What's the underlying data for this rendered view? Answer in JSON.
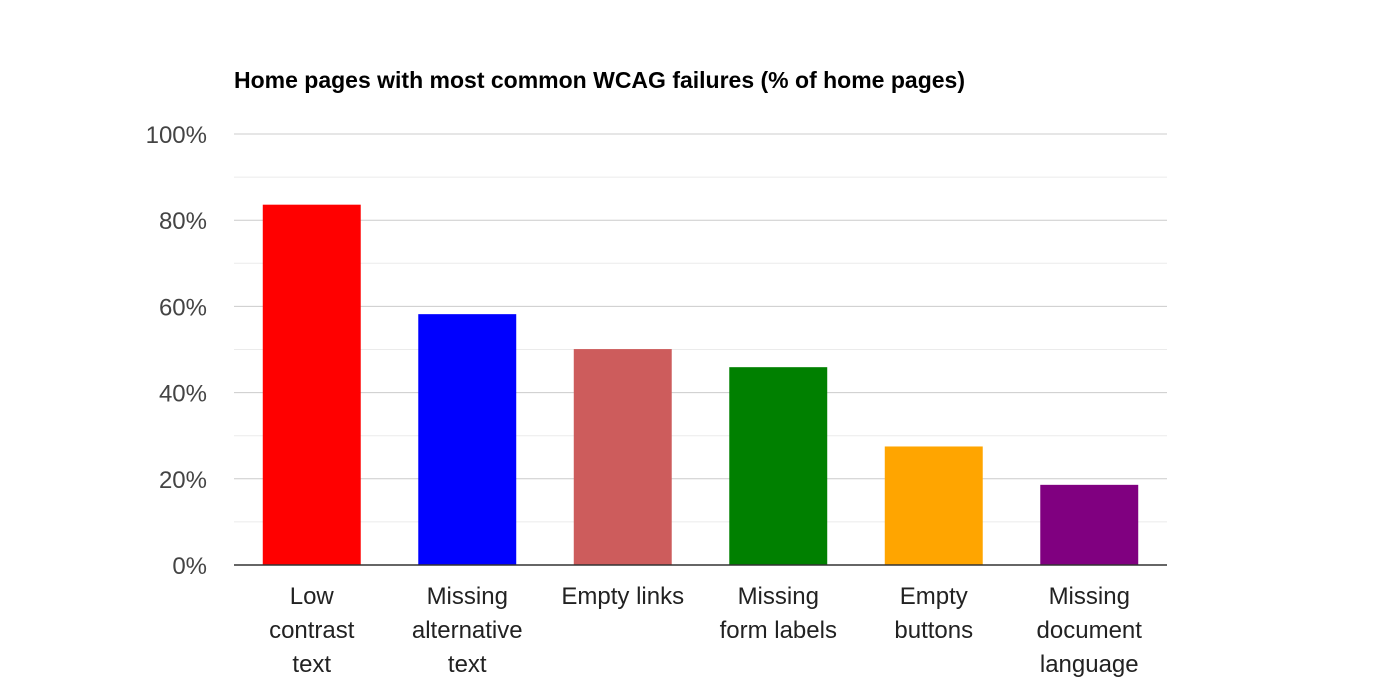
{
  "chart_data": {
    "type": "bar",
    "title": "Home pages with most common WCAG failures (% of home pages)",
    "xlabel": "",
    "ylabel": "",
    "categories": [
      [
        "Low",
        "contrast",
        "text"
      ],
      [
        "Missing",
        "alternative",
        "text"
      ],
      [
        "Empty links"
      ],
      [
        "Missing",
        "form labels"
      ],
      [
        "Empty",
        "buttons"
      ],
      [
        "Missing",
        "document",
        "language"
      ]
    ],
    "values": [
      83.6,
      58.2,
      50.1,
      45.9,
      27.5,
      18.6
    ],
    "value_unit": "%",
    "bar_colors": [
      "#ff0000",
      "#0000ff",
      "#cd5c5c",
      "#008000",
      "#ffa500",
      "#800080"
    ],
    "ylim": [
      0,
      100
    ],
    "yticks": [
      0,
      20,
      40,
      60,
      80,
      100
    ],
    "ytick_labels": [
      "0%",
      "20%",
      "40%",
      "60%",
      "80%",
      "100%"
    ],
    "grid": true,
    "minor_grid": true,
    "legend": "none"
  }
}
